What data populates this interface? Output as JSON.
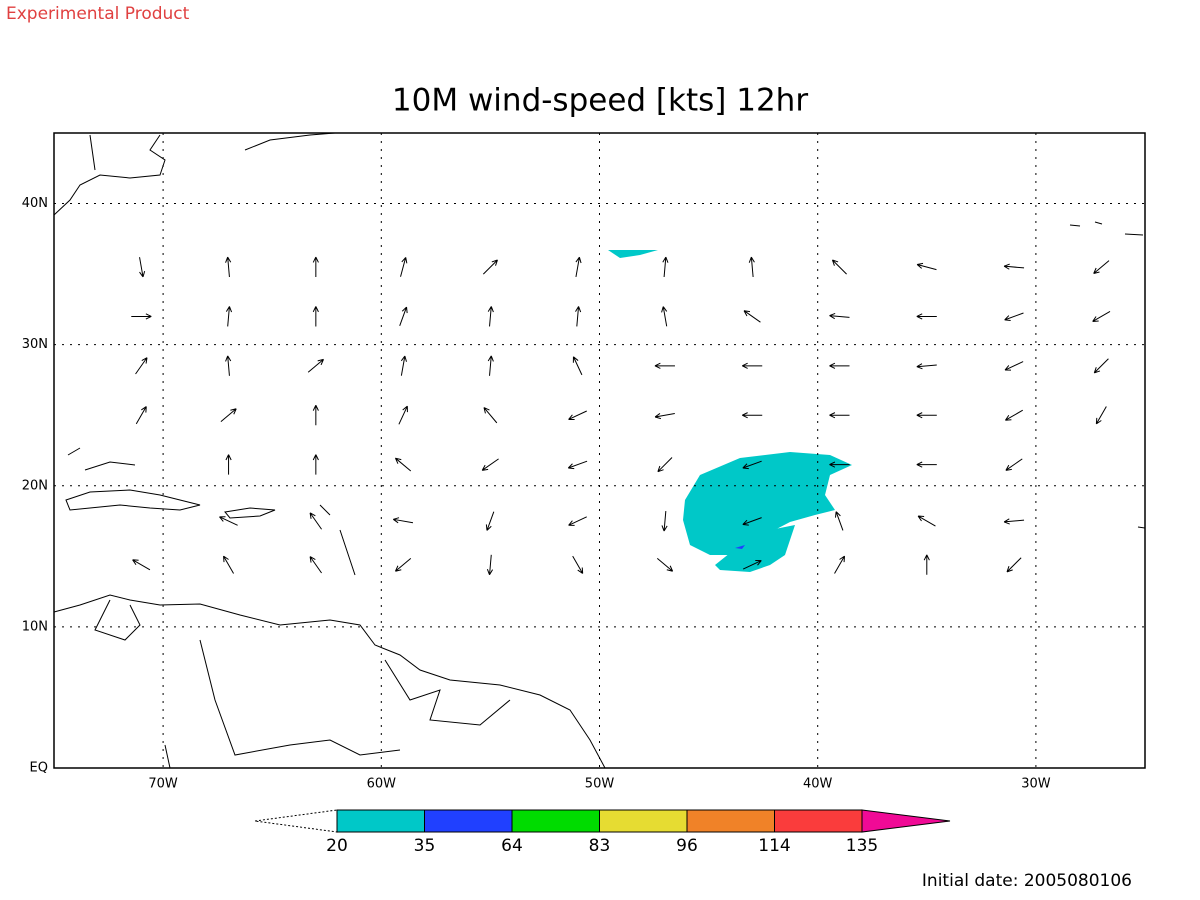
{
  "header": {
    "note": "Experimental Product",
    "footer": "Initial date: 2005080106"
  },
  "chart_data": {
    "type": "vector-map",
    "title": "10M wind-speed [kts] 12hr",
    "xlim": [
      -75,
      -25
    ],
    "ylim": [
      0,
      45
    ],
    "xticks": [
      {
        "value": -70,
        "label": "70W"
      },
      {
        "value": -60,
        "label": "60W"
      },
      {
        "value": -50,
        "label": "50W"
      },
      {
        "value": -40,
        "label": "40W"
      },
      {
        "value": -30,
        "label": "30W"
      }
    ],
    "yticks": [
      {
        "value": 0,
        "label": "EQ"
      },
      {
        "value": 10,
        "label": "10N"
      },
      {
        "value": 20,
        "label": "20N"
      },
      {
        "value": 30,
        "label": "30N"
      },
      {
        "value": 40,
        "label": "40N"
      }
    ],
    "grid": true,
    "vectors": {
      "lons": [
        -71,
        -67,
        -63,
        -59,
        -55,
        -51,
        -47,
        -43,
        -39,
        -35,
        -31,
        -27
      ],
      "lats": [
        35.5,
        32,
        28.5,
        25,
        21.5,
        17.5,
        14.4
      ],
      "directions": [
        [
          -80,
          95,
          90,
          75,
          45,
          80,
          85,
          95,
          135,
          165,
          175,
          220
        ],
        [
          0,
          85,
          90,
          70,
          85,
          85,
          100,
          145,
          175,
          180,
          200,
          210
        ],
        [
          55,
          95,
          40,
          80,
          85,
          115,
          180,
          180,
          180,
          185,
          205,
          225
        ],
        [
          60,
          40,
          90,
          65,
          130,
          205,
          190,
          180,
          180,
          180,
          210,
          240
        ],
        [
          null,
          90,
          90,
          140,
          215,
          200,
          225,
          200,
          180,
          180,
          215,
          null
        ],
        [
          null,
          155,
          125,
          170,
          250,
          205,
          265,
          200,
          110,
          150,
          185,
          null
        ],
        [
          150,
          120,
          125,
          220,
          265,
          300,
          320,
          25,
          60,
          90,
          225,
          null
        ]
      ]
    },
    "colorbar": {
      "levels": [
        20,
        35,
        64,
        83,
        96,
        114,
        135
      ],
      "colors": [
        "#00c8c8",
        "#2040ff",
        "#00dc00",
        "#e6dc32",
        "#f08228",
        "#fa3c3c",
        "#f00a96"
      ]
    }
  }
}
